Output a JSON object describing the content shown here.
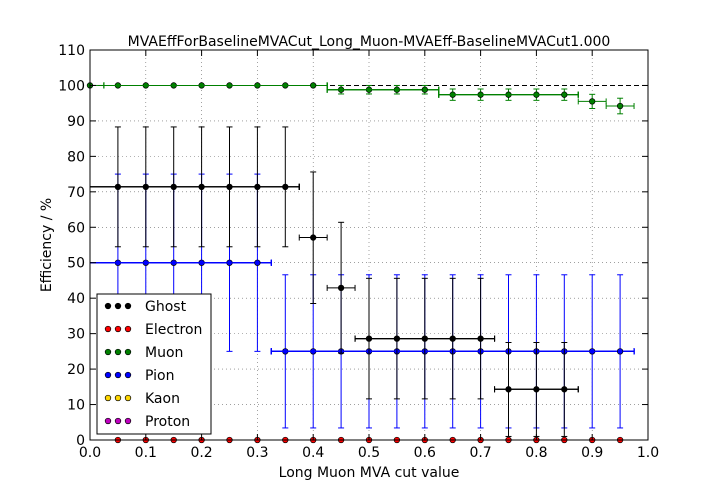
{
  "chart_data": {
    "type": "scatter",
    "title": "MVAEffForBaselineMVACut_Long_Muon-MVAEff-BaselineMVACut1.000",
    "xlabel": "Long Muon MVA cut value",
    "ylabel": "Efficiency / %",
    "xlim": [
      0.0,
      1.0
    ],
    "ylim": [
      0,
      110
    ],
    "xticks": [
      "0.0",
      "0.1",
      "0.2",
      "0.3",
      "0.4",
      "0.5",
      "0.6",
      "0.7",
      "0.8",
      "0.9",
      "1.0"
    ],
    "yticks": [
      "0",
      "10",
      "20",
      "30",
      "40",
      "50",
      "60",
      "70",
      "80",
      "90",
      "100",
      "110"
    ],
    "reference_line": 100,
    "grid": true,
    "legend_position": "lower-left",
    "series": [
      {
        "name": "Ghost",
        "color": "#000000",
        "points": [
          {
            "x": 0.05,
            "y": 71.4,
            "xlo": 0.0,
            "xhi": 0.375,
            "ylo": 54.5,
            "yhi": 88.3
          },
          {
            "x": 0.1,
            "y": 71.4,
            "xlo": 0.0,
            "xhi": 0.375,
            "ylo": 54.5,
            "yhi": 88.3
          },
          {
            "x": 0.15,
            "y": 71.4,
            "xlo": 0.0,
            "xhi": 0.375,
            "ylo": 54.5,
            "yhi": 88.3
          },
          {
            "x": 0.2,
            "y": 71.4,
            "xlo": 0.0,
            "xhi": 0.375,
            "ylo": 54.5,
            "yhi": 88.3
          },
          {
            "x": 0.25,
            "y": 71.4,
            "xlo": 0.0,
            "xhi": 0.375,
            "ylo": 54.5,
            "yhi": 88.3
          },
          {
            "x": 0.3,
            "y": 71.4,
            "xlo": 0.0,
            "xhi": 0.375,
            "ylo": 54.5,
            "yhi": 88.3
          },
          {
            "x": 0.35,
            "y": 71.4,
            "xlo": 0.0,
            "xhi": 0.375,
            "ylo": 54.5,
            "yhi": 88.3
          },
          {
            "x": 0.4,
            "y": 57.1,
            "xlo": 0.375,
            "xhi": 0.425,
            "ylo": 38.5,
            "yhi": 75.6
          },
          {
            "x": 0.45,
            "y": 42.9,
            "xlo": 0.425,
            "xhi": 0.475,
            "ylo": 24.5,
            "yhi": 61.4
          },
          {
            "x": 0.5,
            "y": 28.6,
            "xlo": 0.475,
            "xhi": 0.725,
            "ylo": 11.6,
            "yhi": 45.6
          },
          {
            "x": 0.55,
            "y": 28.6,
            "xlo": 0.475,
            "xhi": 0.725,
            "ylo": 11.6,
            "yhi": 45.6
          },
          {
            "x": 0.6,
            "y": 28.6,
            "xlo": 0.475,
            "xhi": 0.725,
            "ylo": 11.6,
            "yhi": 45.6
          },
          {
            "x": 0.65,
            "y": 28.6,
            "xlo": 0.475,
            "xhi": 0.725,
            "ylo": 11.6,
            "yhi": 45.6
          },
          {
            "x": 0.7,
            "y": 28.6,
            "xlo": 0.475,
            "xhi": 0.725,
            "ylo": 11.6,
            "yhi": 45.6
          },
          {
            "x": 0.75,
            "y": 14.3,
            "xlo": 0.725,
            "xhi": 0.875,
            "ylo": 1.0,
            "yhi": 27.5
          },
          {
            "x": 0.8,
            "y": 14.3,
            "xlo": 0.725,
            "xhi": 0.875,
            "ylo": 1.0,
            "yhi": 27.5
          },
          {
            "x": 0.85,
            "y": 14.3,
            "xlo": 0.725,
            "xhi": 0.875,
            "ylo": 1.0,
            "yhi": 27.5
          }
        ]
      },
      {
        "name": "Electron",
        "color": "#ff0000",
        "points": [
          {
            "x": 0.05,
            "y": 0
          },
          {
            "x": 0.1,
            "y": 0
          },
          {
            "x": 0.15,
            "y": 0
          },
          {
            "x": 0.2,
            "y": 0
          },
          {
            "x": 0.25,
            "y": 0
          },
          {
            "x": 0.3,
            "y": 0
          },
          {
            "x": 0.35,
            "y": 0
          },
          {
            "x": 0.4,
            "y": 0
          },
          {
            "x": 0.45,
            "y": 0
          },
          {
            "x": 0.5,
            "y": 0
          },
          {
            "x": 0.55,
            "y": 0
          },
          {
            "x": 0.6,
            "y": 0
          },
          {
            "x": 0.65,
            "y": 0
          },
          {
            "x": 0.7,
            "y": 0
          },
          {
            "x": 0.75,
            "y": 0
          },
          {
            "x": 0.8,
            "y": 0
          },
          {
            "x": 0.85,
            "y": 0
          },
          {
            "x": 0.9,
            "y": 0
          },
          {
            "x": 0.95,
            "y": 0
          }
        ]
      },
      {
        "name": "Muon",
        "color": "#008000",
        "points": [
          {
            "x": 0.0,
            "y": 100,
            "xlo": 0.0,
            "xhi": 0.025
          },
          {
            "x": 0.05,
            "y": 100,
            "xlo": 0.025,
            "xhi": 0.425,
            "ylo": 100,
            "yhi": 100
          },
          {
            "x": 0.1,
            "y": 100,
            "xlo": 0.025,
            "xhi": 0.425,
            "ylo": 100,
            "yhi": 100
          },
          {
            "x": 0.15,
            "y": 100,
            "xlo": 0.025,
            "xhi": 0.425,
            "ylo": 100,
            "yhi": 100
          },
          {
            "x": 0.2,
            "y": 100,
            "xlo": 0.025,
            "xhi": 0.425,
            "ylo": 100,
            "yhi": 100
          },
          {
            "x": 0.25,
            "y": 100,
            "xlo": 0.025,
            "xhi": 0.425,
            "ylo": 100,
            "yhi": 100
          },
          {
            "x": 0.3,
            "y": 100,
            "xlo": 0.025,
            "xhi": 0.425,
            "ylo": 100,
            "yhi": 100
          },
          {
            "x": 0.35,
            "y": 100,
            "xlo": 0.025,
            "xhi": 0.425,
            "ylo": 100,
            "yhi": 100
          },
          {
            "x": 0.4,
            "y": 100,
            "xlo": 0.025,
            "xhi": 0.425,
            "ylo": 100,
            "yhi": 100
          },
          {
            "x": 0.45,
            "y": 98.8,
            "xlo": 0.425,
            "xhi": 0.625,
            "ylo": 97.6,
            "yhi": 100
          },
          {
            "x": 0.5,
            "y": 98.8,
            "xlo": 0.425,
            "xhi": 0.625,
            "ylo": 97.6,
            "yhi": 100
          },
          {
            "x": 0.55,
            "y": 98.8,
            "xlo": 0.425,
            "xhi": 0.625,
            "ylo": 97.6,
            "yhi": 100
          },
          {
            "x": 0.6,
            "y": 98.8,
            "xlo": 0.425,
            "xhi": 0.625,
            "ylo": 97.6,
            "yhi": 100
          },
          {
            "x": 0.65,
            "y": 97.4,
            "xlo": 0.625,
            "xhi": 0.875,
            "ylo": 95.8,
            "yhi": 99.0
          },
          {
            "x": 0.7,
            "y": 97.4,
            "xlo": 0.625,
            "xhi": 0.875,
            "ylo": 95.8,
            "yhi": 99.0
          },
          {
            "x": 0.75,
            "y": 97.4,
            "xlo": 0.625,
            "xhi": 0.875,
            "ylo": 95.8,
            "yhi": 99.0
          },
          {
            "x": 0.8,
            "y": 97.4,
            "xlo": 0.625,
            "xhi": 0.875,
            "ylo": 95.8,
            "yhi": 99.0
          },
          {
            "x": 0.85,
            "y": 97.4,
            "xlo": 0.625,
            "xhi": 0.875,
            "ylo": 95.8,
            "yhi": 99.0
          },
          {
            "x": 0.9,
            "y": 95.5,
            "xlo": 0.875,
            "xhi": 0.925,
            "ylo": 93.5,
            "yhi": 97.5
          },
          {
            "x": 0.95,
            "y": 94.2,
            "xlo": 0.925,
            "xhi": 0.975,
            "ylo": 92.0,
            "yhi": 96.4
          }
        ]
      },
      {
        "name": "Pion",
        "color": "#0000ff",
        "points": [
          {
            "x": 0.05,
            "y": 50,
            "xlo": 0.0,
            "xhi": 0.325,
            "ylo": 25,
            "yhi": 75
          },
          {
            "x": 0.1,
            "y": 50,
            "xlo": 0.0,
            "xhi": 0.325,
            "ylo": 25,
            "yhi": 75
          },
          {
            "x": 0.15,
            "y": 50,
            "xlo": 0.0,
            "xhi": 0.325,
            "ylo": 25,
            "yhi": 75
          },
          {
            "x": 0.2,
            "y": 50,
            "xlo": 0.0,
            "xhi": 0.325,
            "ylo": 25,
            "yhi": 75
          },
          {
            "x": 0.25,
            "y": 50,
            "xlo": 0.0,
            "xhi": 0.325,
            "ylo": 25,
            "yhi": 75
          },
          {
            "x": 0.3,
            "y": 50,
            "xlo": 0.0,
            "xhi": 0.325,
            "ylo": 25,
            "yhi": 75
          },
          {
            "x": 0.35,
            "y": 25,
            "xlo": 0.325,
            "xhi": 0.975,
            "ylo": 3.4,
            "yhi": 46.6
          },
          {
            "x": 0.4,
            "y": 25,
            "xlo": 0.325,
            "xhi": 0.975,
            "ylo": 3.4,
            "yhi": 46.6
          },
          {
            "x": 0.45,
            "y": 25,
            "xlo": 0.325,
            "xhi": 0.975,
            "ylo": 3.4,
            "yhi": 46.6
          },
          {
            "x": 0.5,
            "y": 25,
            "xlo": 0.325,
            "xhi": 0.975,
            "ylo": 3.4,
            "yhi": 46.6
          },
          {
            "x": 0.55,
            "y": 25,
            "xlo": 0.325,
            "xhi": 0.975,
            "ylo": 3.4,
            "yhi": 46.6
          },
          {
            "x": 0.6,
            "y": 25,
            "xlo": 0.325,
            "xhi": 0.975,
            "ylo": 3.4,
            "yhi": 46.6
          },
          {
            "x": 0.65,
            "y": 25,
            "xlo": 0.325,
            "xhi": 0.975,
            "ylo": 3.4,
            "yhi": 46.6
          },
          {
            "x": 0.7,
            "y": 25,
            "xlo": 0.325,
            "xhi": 0.975,
            "ylo": 3.4,
            "yhi": 46.6
          },
          {
            "x": 0.75,
            "y": 25,
            "xlo": 0.325,
            "xhi": 0.975,
            "ylo": 3.4,
            "yhi": 46.6
          },
          {
            "x": 0.8,
            "y": 25,
            "xlo": 0.325,
            "xhi": 0.975,
            "ylo": 3.4,
            "yhi": 46.6
          },
          {
            "x": 0.85,
            "y": 25,
            "xlo": 0.325,
            "xhi": 0.975,
            "ylo": 3.4,
            "yhi": 46.6
          },
          {
            "x": 0.9,
            "y": 25,
            "xlo": 0.325,
            "xhi": 0.975,
            "ylo": 3.4,
            "yhi": 46.6
          },
          {
            "x": 0.95,
            "y": 25,
            "xlo": 0.325,
            "xhi": 0.975,
            "ylo": 3.4,
            "yhi": 46.6
          }
        ]
      },
      {
        "name": "Kaon",
        "color": "#ffd700",
        "points": []
      },
      {
        "name": "Proton",
        "color": "#bf00bf",
        "points": []
      }
    ]
  }
}
